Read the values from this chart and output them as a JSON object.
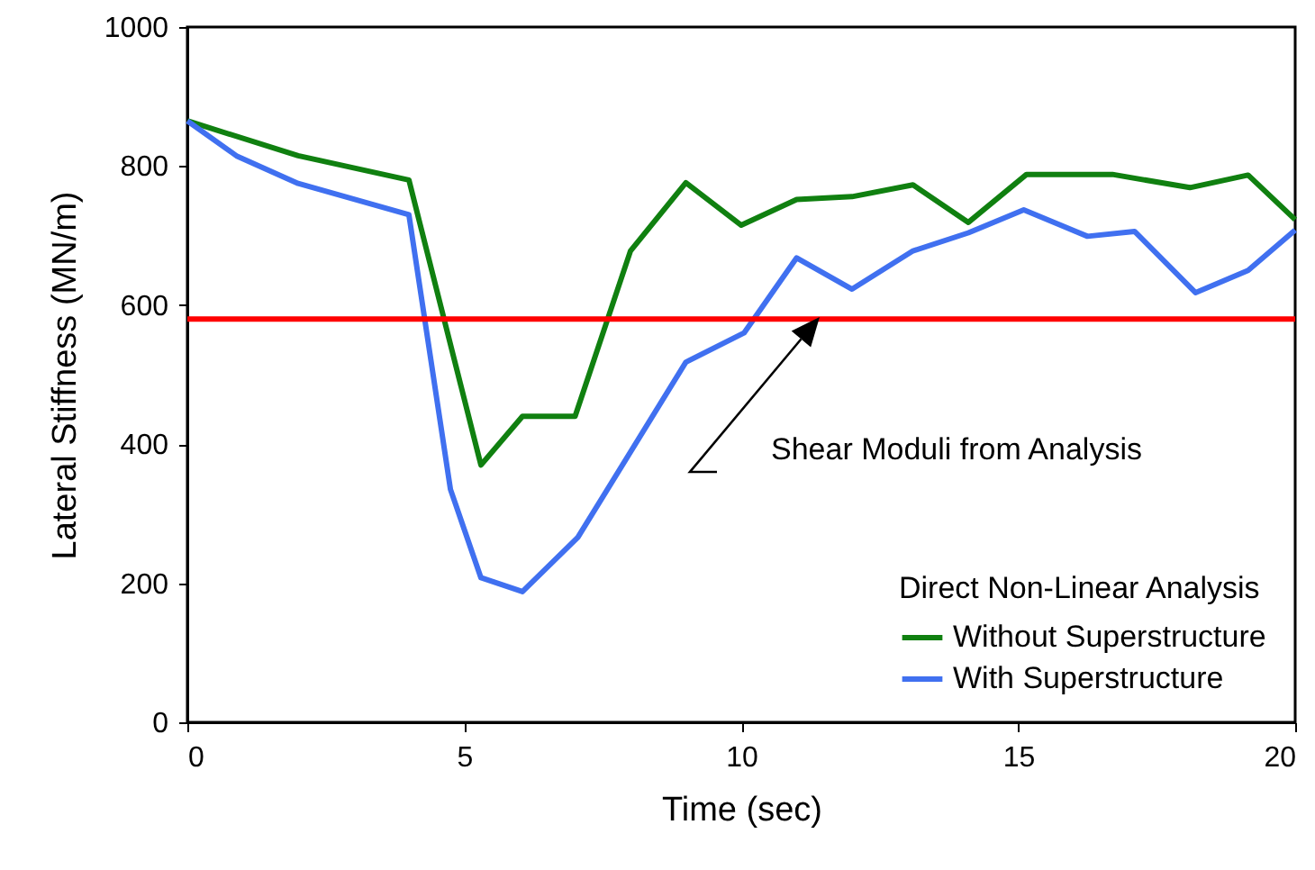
{
  "chart_data": {
    "type": "line",
    "xlabel": "Time (sec)",
    "ylabel": "Lateral Stiffness (MN/m)",
    "legend_title": "Direct Non-Linear Analysis",
    "legend": "bottom right",
    "xlim": [
      0,
      20
    ],
    "xticks": [
      0,
      5,
      10,
      15,
      20
    ],
    "ylim": [
      0,
      1000
    ],
    "yticks": [
      0,
      200,
      400,
      600,
      800,
      1000
    ],
    "series": [
      {
        "name": "Without Superstructure",
        "color": "#108010",
        "x": [
          0,
          2,
          4,
          5.3,
          6.05,
          7,
          8,
          9,
          10,
          11,
          12,
          13.1,
          14.1,
          15.15,
          16.7,
          18.1,
          19.15,
          20
        ],
        "values": [
          865,
          815,
          780,
          370,
          440,
          440,
          678,
          776,
          715,
          752,
          756,
          773,
          719,
          788,
          788,
          769,
          787,
          723
        ]
      },
      {
        "name": "With Superstructure",
        "color": "#4070f0",
        "x": [
          0,
          0.9,
          2,
          4,
          4.75,
          5.3,
          6.05,
          7.05,
          9,
          10.05,
          11,
          12,
          13.1,
          14.1,
          15.1,
          16.25,
          17.1,
          18.2,
          19.15,
          20
        ],
        "values": [
          865,
          814,
          775,
          730,
          335,
          208,
          188,
          266,
          518,
          560,
          668,
          623,
          678,
          704,
          737,
          699,
          706,
          618,
          650,
          708
        ]
      }
    ],
    "ref_lines": [
      {
        "axis": "y",
        "value": 580,
        "color": "#ff0000"
      }
    ],
    "annotations": [
      "Shear Moduli from Analysis"
    ]
  }
}
